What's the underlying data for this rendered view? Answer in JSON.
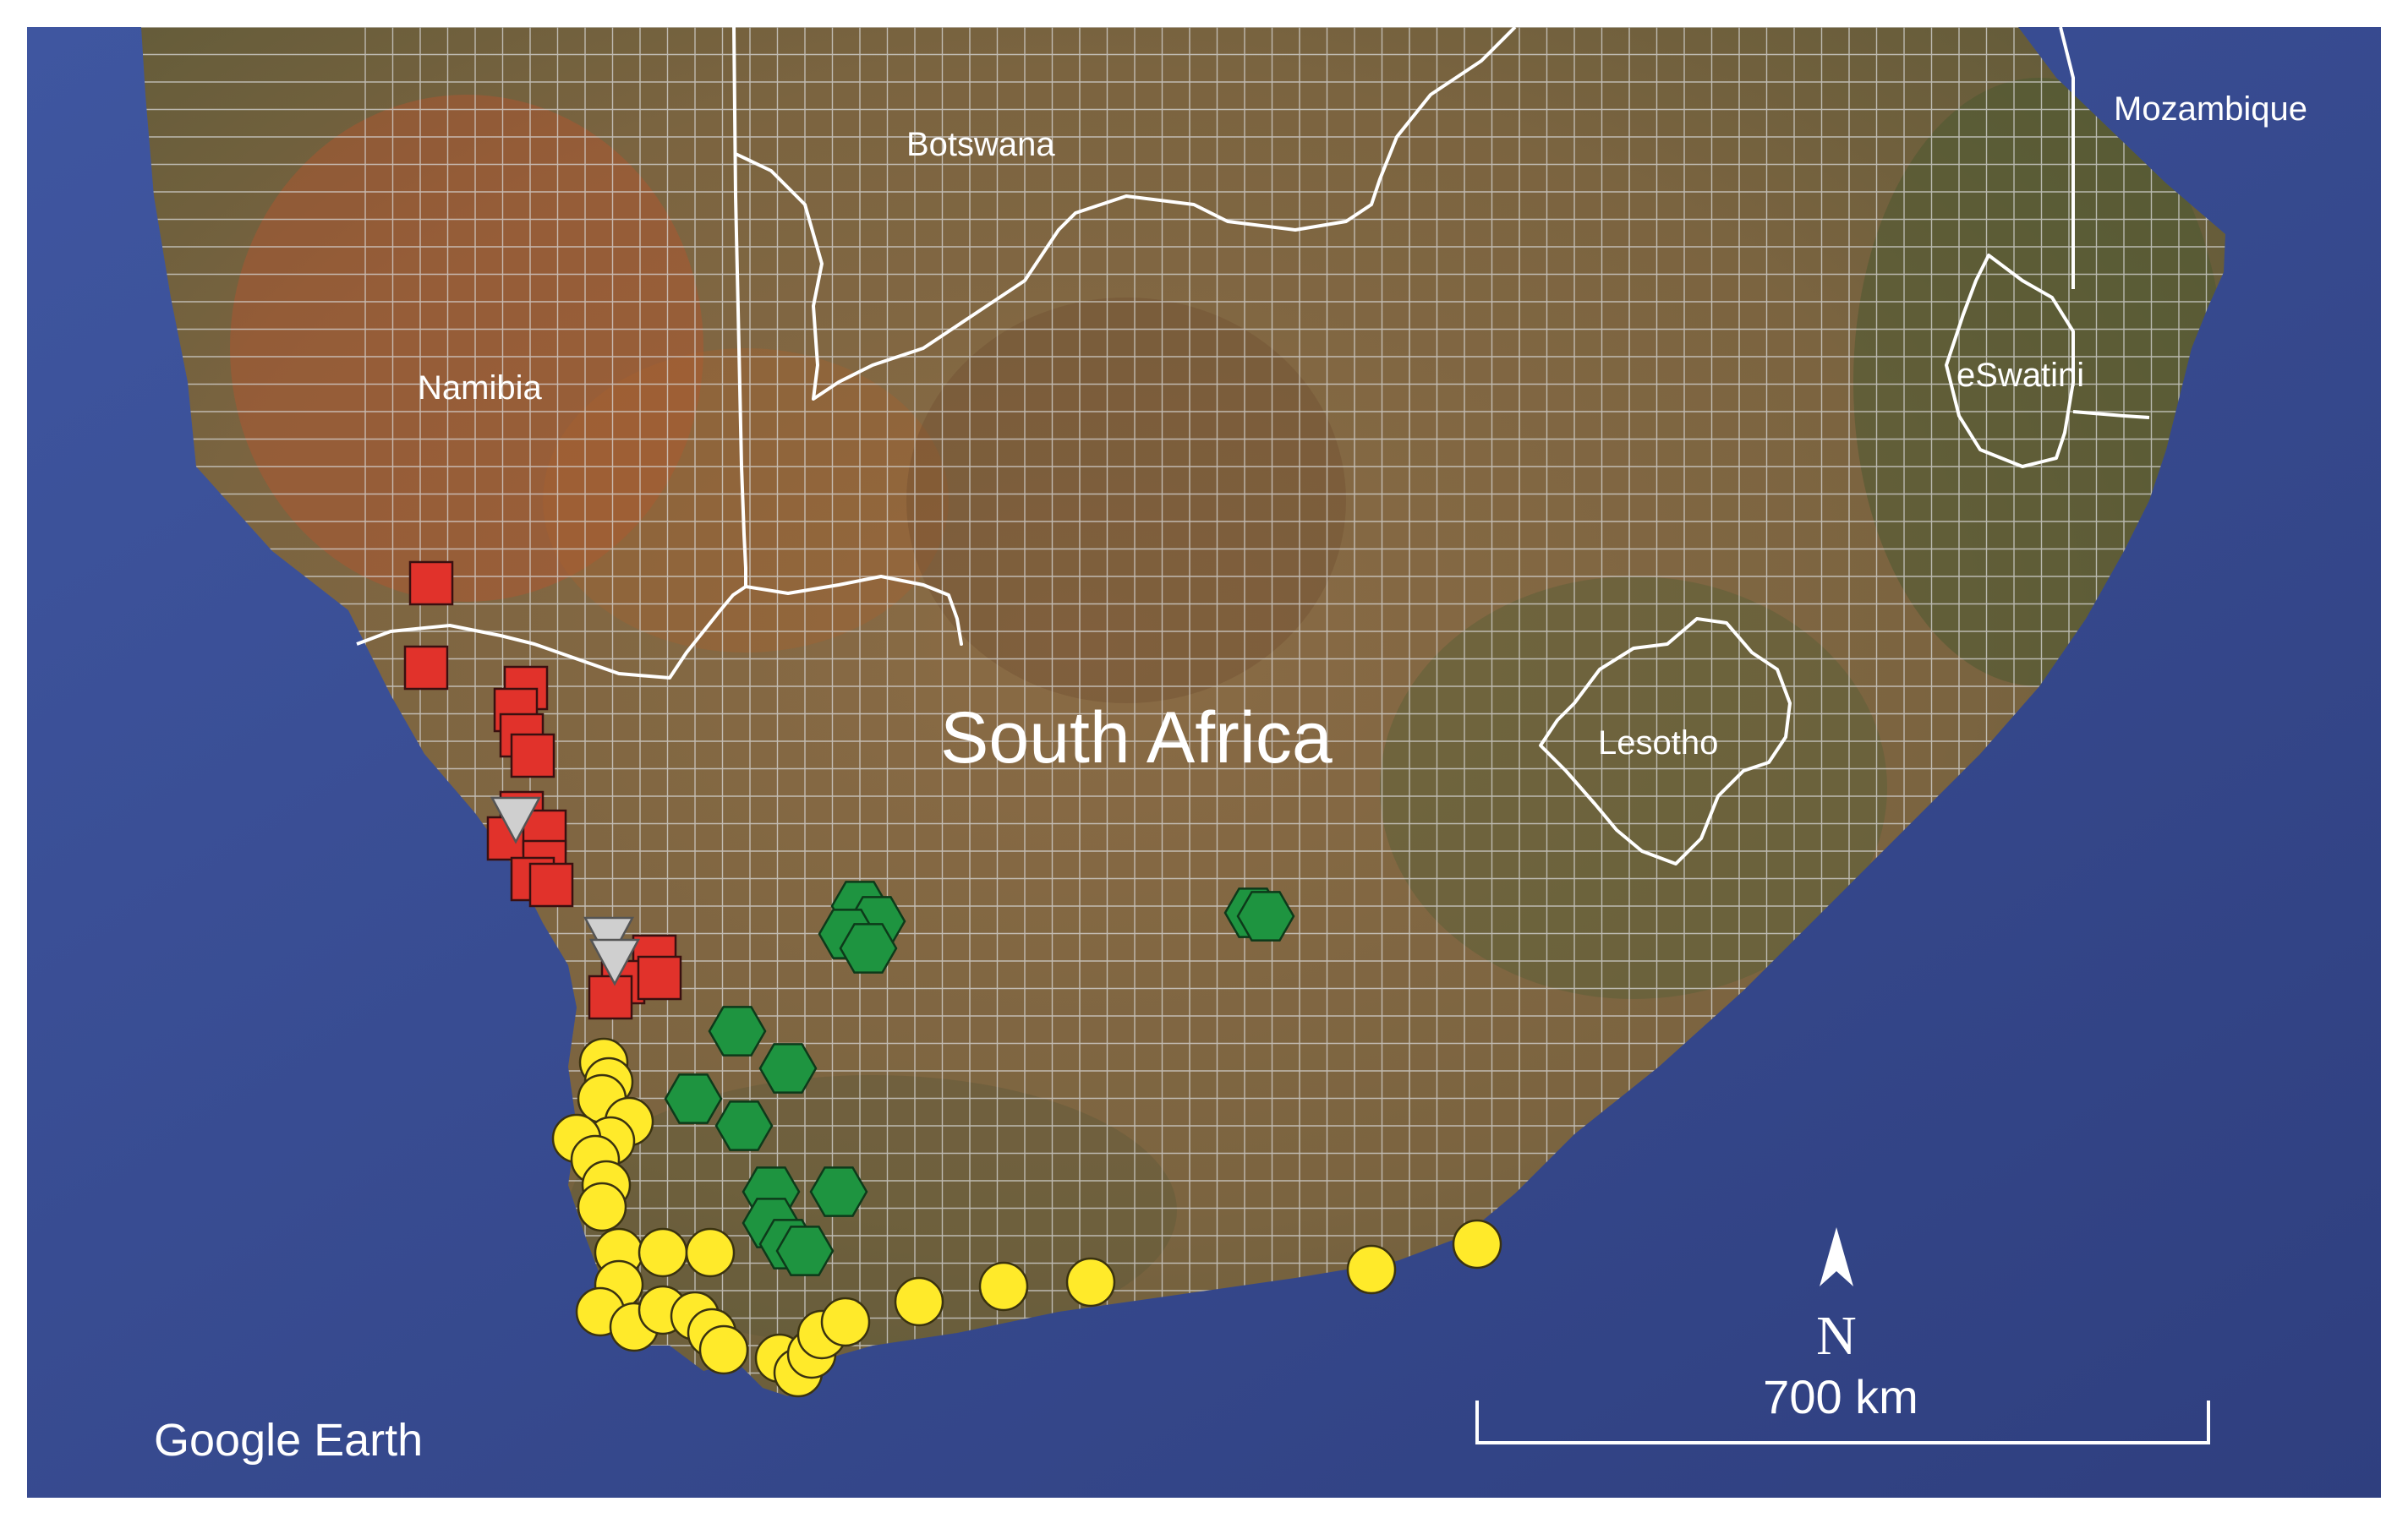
{
  "labels": {
    "namibia": "Namibia",
    "botswana": "Botswana",
    "mozambique": "Mozambique",
    "eswatini": "eSwatini",
    "lesotho": "Lesotho",
    "south_africa": "South Africa"
  },
  "credit": "Google Earth",
  "north_arrow": {
    "label": "N",
    "icon": "north-arrow-icon"
  },
  "scale_bar": {
    "label": "700 km"
  },
  "colors": {
    "ocean": "#3b4d94",
    "land": "#8a6a43",
    "border": "#ffffff",
    "grid": "#d8d8d8",
    "square_marker": "#e1322b",
    "triangle_marker": "#cfcfcf",
    "hexagon_marker": "#1e9440",
    "circle_marker": "#ffea2a"
  },
  "markers": {
    "red_square": [],
    "grey_triangle": [],
    "green_hexagon": [],
    "yellow_circle": []
  }
}
